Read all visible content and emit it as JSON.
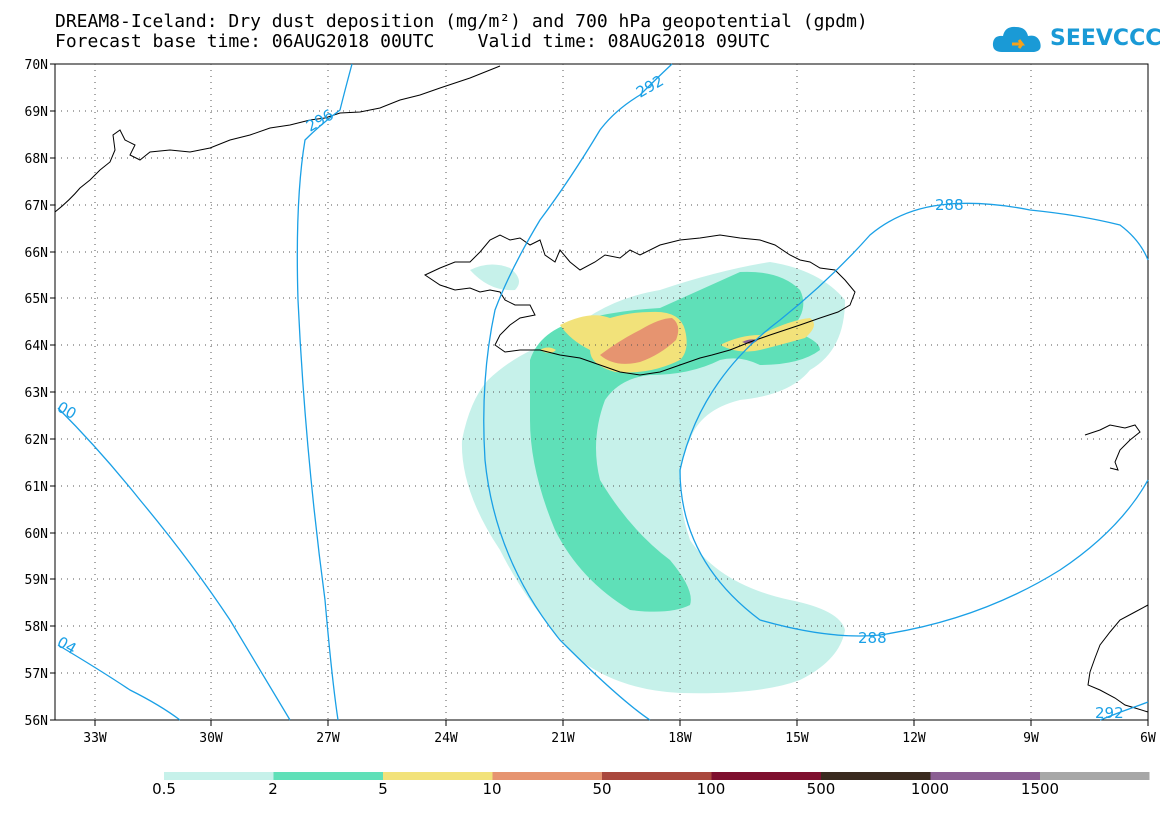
{
  "title_line1": "DREAM8-Iceland: Dry dust deposition (mg/m²) and 700 hPa geopotential (gpdm)",
  "title_line2": "Forecast base time: 06AUG2018 00UTC    Valid time: 08AUG2018 09UTC",
  "logo_text": "SEEVCCC",
  "lat_ticks": [
    "70N",
    "69N",
    "68N",
    "67N",
    "66N",
    "65N",
    "64N",
    "63N",
    "62N",
    "61N",
    "60N",
    "59N",
    "58N",
    "57N",
    "56N"
  ],
  "lon_ticks": [
    "33W",
    "30W",
    "27W",
    "24W",
    "21W",
    "18W",
    "15W",
    "12W",
    "9W",
    "6W"
  ],
  "contour_labels": [
    "296",
    "292",
    "288",
    "288",
    "292",
    "00",
    "04"
  ],
  "legend": {
    "labels": [
      "0.5",
      "2",
      "5",
      "10",
      "50",
      "100",
      "500",
      "1000",
      "1500"
    ],
    "colors": [
      "#c6f1ea",
      "#5fe0b8",
      "#f2e27a",
      "#e69470",
      "#a9473d",
      "#7e0f2e",
      "#3a2a1f",
      "#8b5f93",
      "#a7a7a7"
    ]
  }
}
